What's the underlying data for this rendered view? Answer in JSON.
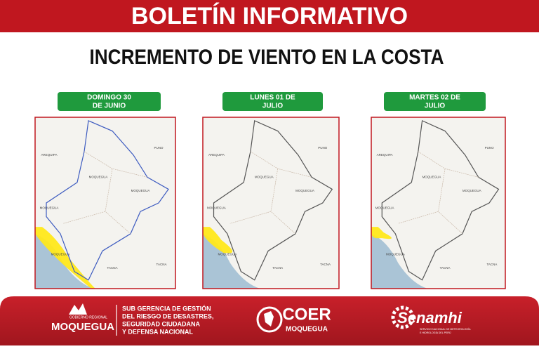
{
  "header": {
    "title": "BOLETÍN INFORMATIVO",
    "subtitle": "INCREMENTO DE VIENTO EN LA  COSTA"
  },
  "panels": [
    {
      "date": [
        "DOMINGO  30",
        "DE JUNIO"
      ],
      "labels": [
        "AREQUIPA",
        "MOQUEGUA",
        "MOQUEGUA",
        "MOQUEGUA",
        "MOQUEGUA",
        "PUNO",
        "TACNA",
        "TACNA"
      ]
    },
    {
      "date": [
        "LUNES 01 DE",
        "JULIO"
      ],
      "labels": [
        "AREQUIPA",
        "MOQUEGUA",
        "MOQUEGUA",
        "MOQUEGUA",
        "MOQUEGUA",
        "PUNO",
        "TACNA",
        "TACNA"
      ]
    },
    {
      "date": [
        "MARTES 02 DE",
        "JULIO"
      ],
      "labels": [
        "AREQUIPA",
        "MOQUEGUA",
        "MOQUEGUA",
        "MOQUEGUA",
        "MOQUEGUA",
        "PUNO",
        "TACNA",
        "TACNA"
      ]
    }
  ],
  "footer": {
    "gore_top": "GOBIERNO REGIONAL",
    "gore_name": "MOQUEGUA",
    "office": [
      "SUB GERENCIA DE GESTIÓN",
      "DEL RIESGO DE DESASTRES,",
      "SEGURIDAD CIUDADANA",
      "Y DEFENSA NACIONAL"
    ],
    "coer": "COER",
    "coer_sub": "MOQUEGUA",
    "senamhi": "Senamhi",
    "senamhi_sub": [
      "SERVICIO NACIONAL DE METEOROLOGÍA",
      "E HIDROLOGÍA DEL PERÚ"
    ]
  }
}
